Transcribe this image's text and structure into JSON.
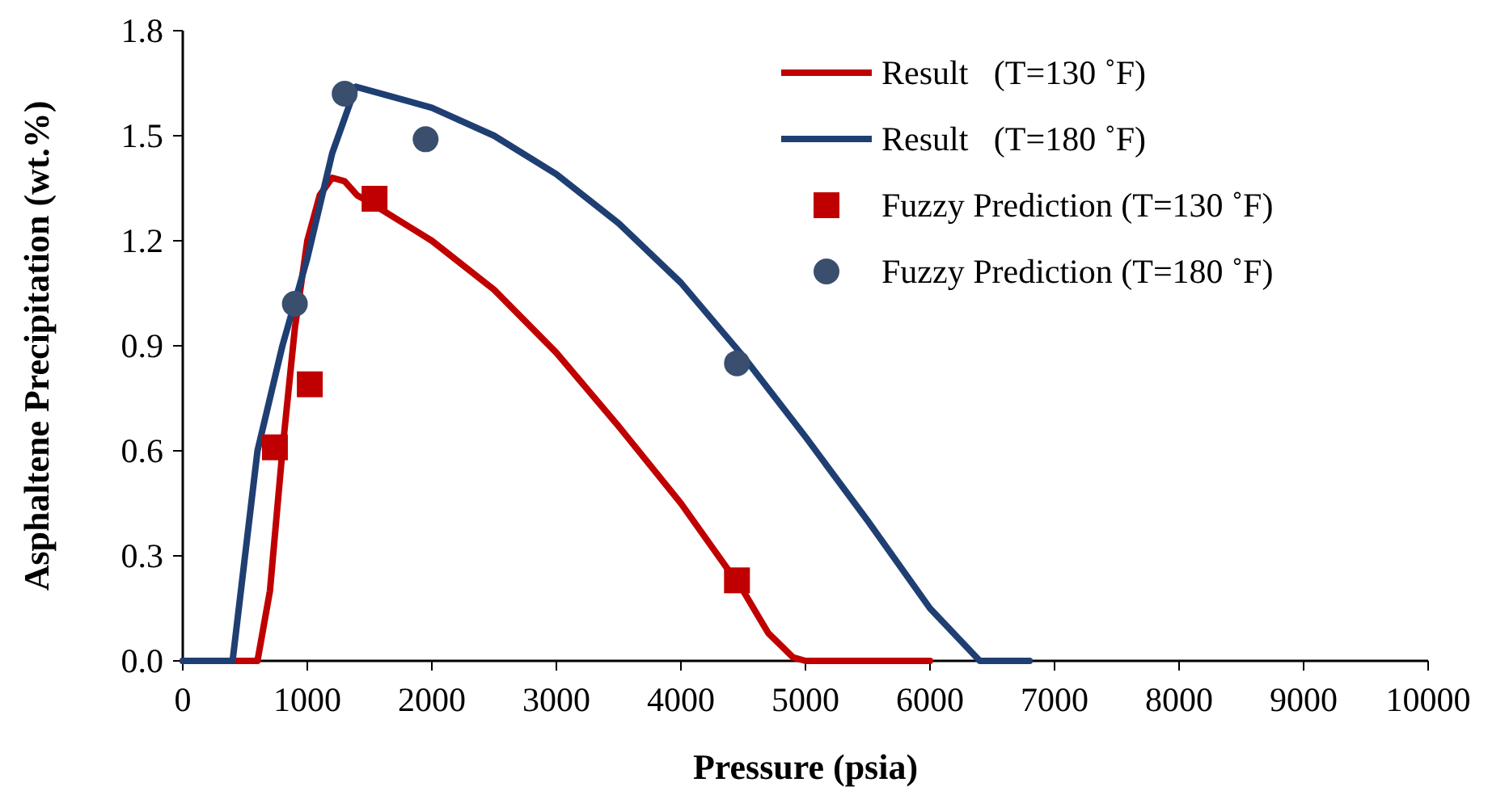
{
  "chart_data": {
    "type": "line",
    "xlabel": "Pressure (psia)",
    "ylabel": "Asphaltene Precipitation (wt.%)",
    "xlim": [
      0,
      10000
    ],
    "xticks": [
      0,
      1000,
      2000,
      3000,
      4000,
      5000,
      6000,
      7000,
      8000,
      9000,
      10000
    ],
    "ylim": [
      0,
      1.8
    ],
    "yticks": [
      {
        "value": 0,
        "label": "0.0"
      },
      {
        "value": 0.3,
        "label": "0.3"
      },
      {
        "value": 0.6,
        "label": "0.6"
      },
      {
        "value": 0.9,
        "label": "0.9"
      },
      {
        "value": 1.2,
        "label": "1.2"
      },
      {
        "value": 1.5,
        "label": "1.5"
      },
      {
        "value": 1.8,
        "label": "1.8"
      }
    ],
    "grid": false,
    "legend": "top right",
    "series": [
      {
        "name": "Result   (T=130 ˚F)",
        "color": "#c00000",
        "marker": "none",
        "line_style": "solid",
        "x": [
          0,
          600,
          700,
          800,
          900,
          1000,
          1100,
          1200,
          1300,
          1400,
          1500,
          2000,
          2500,
          3000,
          3500,
          4000,
          4500,
          4700,
          4900,
          5000,
          6000
        ],
        "values": [
          0,
          0,
          0.2,
          0.6,
          0.95,
          1.2,
          1.33,
          1.38,
          1.37,
          1.33,
          1.31,
          1.2,
          1.06,
          0.88,
          0.67,
          0.45,
          0.2,
          0.08,
          0.01,
          0,
          0
        ]
      },
      {
        "name": "Result   (T=180 ˚F)",
        "color": "#1f3f73",
        "marker": "none",
        "line_style": "solid",
        "x": [
          0,
          400,
          500,
          600,
          800,
          1000,
          1200,
          1390,
          2000,
          2500,
          3000,
          3500,
          4000,
          4500,
          5000,
          5500,
          6000,
          6400,
          6800
        ],
        "values": [
          0,
          0,
          0.3,
          0.6,
          0.9,
          1.15,
          1.45,
          1.64,
          1.58,
          1.5,
          1.39,
          1.25,
          1.08,
          0.87,
          0.64,
          0.4,
          0.15,
          0,
          0
        ]
      },
      {
        "name": "Fuzzy Prediction (T=130 ˚F)",
        "type": "scatter",
        "color": "#c00000",
        "marker": "square",
        "x": [
          740,
          1020,
          1540,
          4450
        ],
        "values": [
          0.61,
          0.79,
          1.32,
          0.23
        ]
      },
      {
        "name": "Fuzzy Prediction (T=180 ˚F)",
        "type": "scatter",
        "color": "#3a4e6e",
        "marker": "circle",
        "x": [
          900,
          1300,
          1950,
          4450
        ],
        "values": [
          1.02,
          1.62,
          1.49,
          0.85
        ]
      }
    ]
  }
}
